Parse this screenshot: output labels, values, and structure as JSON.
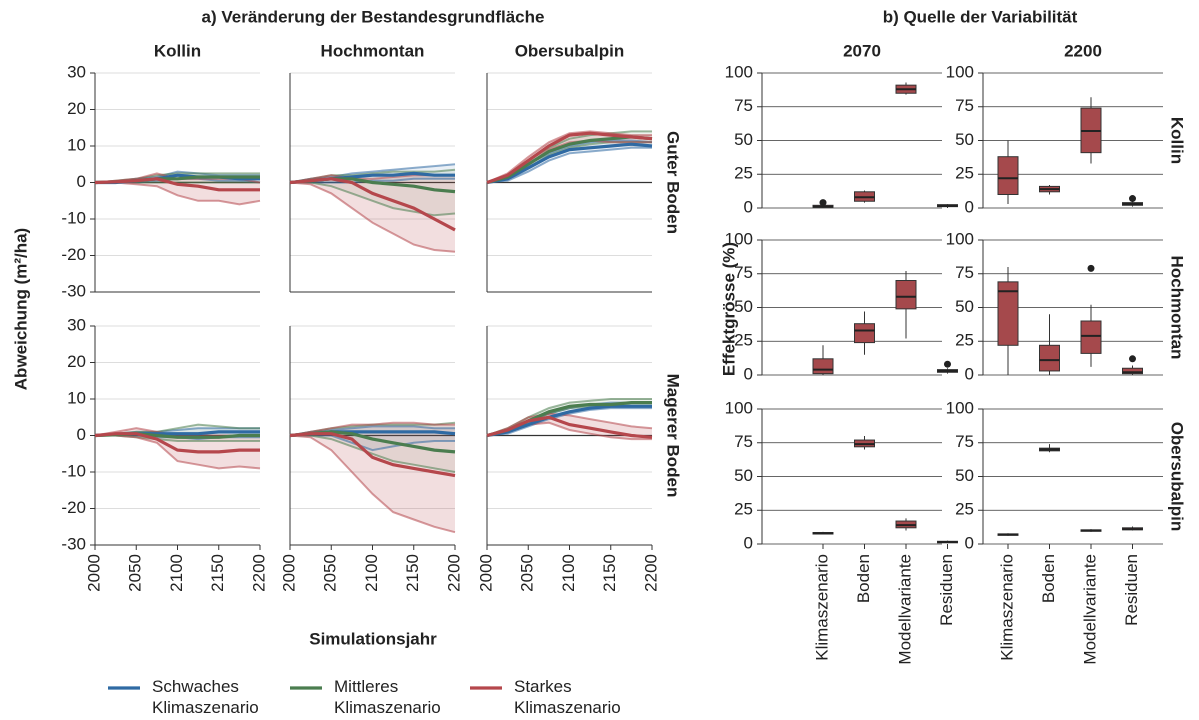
{
  "chart_data": [
    {
      "type": "line",
      "title": "a) Veränderung der Bestandesgrundfläche",
      "col_titles": [
        "Kollin",
        "Hochmontan",
        "Obersubalpin"
      ],
      "row_titles": [
        "Guter Boden",
        "Magerer Boden"
      ],
      "xlabel": "Simulationsjahr",
      "ylabel": "Abweichung (m²/ha)",
      "x": [
        2000,
        2025,
        2050,
        2075,
        2100,
        2125,
        2150,
        2175,
        2200
      ],
      "xlim": [
        2000,
        2200
      ],
      "xticks": [
        2000,
        2050,
        2100,
        2150,
        2200
      ],
      "ylim": [
        -30,
        30
      ],
      "yticks": [
        -30,
        -20,
        -10,
        0,
        10,
        20,
        30
      ],
      "grid": true,
      "series": [
        {
          "name": "Schwaches Klimaszenario",
          "color": "#2f6aa3"
        },
        {
          "name": "Mittleres Klimaszenario",
          "color": "#4b7d4f"
        },
        {
          "name": "Starkes Klimaszenario",
          "color": "#b5474c"
        }
      ],
      "panels": [
        {
          "series": [
            {
              "values": [
                0,
                0,
                0.5,
                1,
                2,
                1.5,
                1.5,
                1,
                1
              ],
              "lower": [
                0,
                0,
                0,
                0.5,
                1,
                1,
                0.5,
                0.5,
                0
              ],
              "upper": [
                0,
                0.3,
                1,
                1.5,
                3,
                2.5,
                2,
                2,
                2
              ]
            },
            {
              "values": [
                0,
                0.2,
                0.5,
                1,
                1,
                1.5,
                1.5,
                1.5,
                1.5
              ],
              "lower": [
                0,
                0,
                0,
                0,
                0,
                0,
                0,
                0,
                0
              ],
              "upper": [
                0,
                0.5,
                1,
                2,
                2.5,
                2.5,
                2.5,
                2.5,
                2.5
              ]
            },
            {
              "values": [
                0,
                0.2,
                0.5,
                1,
                -0.5,
                -1,
                -2,
                -2,
                -2
              ],
              "lower": [
                0,
                0,
                -0.5,
                -1,
                -3.5,
                -5,
                -5,
                -6,
                -5
              ],
              "upper": [
                0,
                0.5,
                1,
                2.5,
                1,
                1,
                1,
                1,
                0
              ]
            }
          ]
        },
        {
          "series": [
            {
              "values": [
                0,
                0.5,
                1,
                1.5,
                2,
                2,
                2.5,
                2,
                2
              ],
              "lower": [
                0,
                0,
                0,
                0,
                0.5,
                0.5,
                1,
                1,
                1
              ],
              "upper": [
                0,
                1,
                1.5,
                2.5,
                3,
                3.5,
                4,
                4.5,
                5
              ]
            },
            {
              "values": [
                0,
                0.5,
                1,
                1,
                0,
                -0.5,
                -1,
                -2,
                -2.5
              ],
              "lower": [
                0,
                0,
                -1,
                -3,
                -5,
                -7,
                -8,
                -9,
                -8.5
              ],
              "upper": [
                0,
                1,
                2,
                2,
                2.5,
                3,
                3,
                3,
                3.5
              ]
            },
            {
              "values": [
                0,
                0.5,
                1,
                0,
                -3,
                -5,
                -7,
                -10,
                -13
              ],
              "lower": [
                0,
                -0.5,
                -3,
                -7,
                -11,
                -14,
                -17,
                -18.5,
                -19
              ],
              "upper": [
                0,
                1,
                2,
                1,
                1,
                1.5,
                2,
                2,
                2
              ]
            }
          ]
        },
        {
          "series": [
            {
              "values": [
                0,
                1,
                4,
                7,
                9,
                9.5,
                10,
                10.5,
                10
              ],
              "lower": [
                0,
                0.5,
                3,
                6,
                8,
                8.5,
                9,
                9.5,
                9.5
              ],
              "upper": [
                0,
                1.5,
                5,
                8,
                10,
                11,
                11.5,
                11.5,
                11
              ]
            },
            {
              "values": [
                0,
                1.5,
                5,
                8.5,
                10.5,
                11.5,
                12,
                12.5,
                12
              ],
              "lower": [
                0,
                1,
                4,
                7.5,
                9.5,
                10.5,
                11,
                11,
                11
              ],
              "upper": [
                0,
                2,
                6,
                9.5,
                12,
                13,
                13.5,
                14,
                14
              ]
            },
            {
              "values": [
                0,
                2,
                6,
                10,
                13,
                13.5,
                13,
                12.5,
                12
              ],
              "lower": [
                0,
                1.5,
                5,
                9,
                11,
                11.5,
                11,
                11,
                11
              ],
              "upper": [
                0,
                2.5,
                7,
                11,
                13.5,
                14,
                13.5,
                13,
                13
              ]
            }
          ]
        },
        {
          "series": [
            {
              "values": [
                0,
                0.3,
                0.5,
                0.5,
                0.5,
                0.5,
                1,
                1,
                1
              ],
              "lower": [
                0,
                0,
                0,
                -0.5,
                -0.5,
                -1,
                -0.5,
                -0.5,
                -0.5
              ],
              "upper": [
                0,
                0.5,
                1,
                1,
                1.5,
                2,
                2,
                2,
                2
              ]
            },
            {
              "values": [
                0,
                0.2,
                0.5,
                0,
                -0.5,
                -0.5,
                -0.5,
                0,
                0
              ],
              "lower": [
                0,
                0,
                -0.5,
                -1,
                -1.5,
                -1.5,
                -1.5,
                -1.5,
                -1.5
              ],
              "upper": [
                0,
                0.5,
                1,
                1,
                2,
                3,
                2.5,
                2,
                2
              ]
            },
            {
              "values": [
                0,
                0.5,
                0.5,
                -1,
                -4,
                -4.5,
                -4.5,
                -4,
                -4
              ],
              "lower": [
                0,
                0,
                -0.5,
                -2,
                -7,
                -8,
                -9,
                -8.5,
                -9
              ],
              "upper": [
                0,
                1,
                2,
                1,
                0,
                0,
                0,
                0,
                0
              ]
            }
          ]
        },
        {
          "series": [
            {
              "values": [
                0,
                0.5,
                1,
                1,
                1,
                1,
                1,
                1,
                0.5
              ],
              "lower": [
                0,
                0,
                0,
                -2,
                -4,
                -3,
                -2,
                -1.5,
                -1.5
              ],
              "upper": [
                0,
                1,
                1.5,
                2,
                2.5,
                2.5,
                2.5,
                2,
                2
              ]
            },
            {
              "values": [
                0,
                0.5,
                1,
                0.5,
                -1,
                -2,
                -3,
                -4,
                -4.5
              ],
              "lower": [
                0,
                0,
                -1,
                -3,
                -5,
                -7,
                -8,
                -9,
                -10
              ],
              "upper": [
                0,
                1,
                2,
                2.5,
                3,
                3,
                3,
                3,
                3.5
              ]
            },
            {
              "values": [
                0,
                0.5,
                0.5,
                -1,
                -6,
                -8,
                -9,
                -10,
                -11
              ],
              "lower": [
                0,
                -0.5,
                -4,
                -10,
                -16,
                -21,
                -23,
                -25,
                -26.5
              ],
              "upper": [
                0,
                1,
                2,
                3,
                3,
                3.5,
                3.5,
                3,
                3
              ]
            }
          ]
        },
        {
          "series": [
            {
              "values": [
                0,
                1,
                3,
                5,
                6.5,
                7.5,
                8,
                8,
                8
              ],
              "lower": [
                0,
                0.5,
                2.5,
                4.5,
                6,
                7,
                7.5,
                7.5,
                7.5
              ],
              "upper": [
                0,
                1.5,
                4,
                6,
                7.5,
                8.5,
                9,
                9,
                9
              ]
            },
            {
              "values": [
                0,
                1.5,
                4,
                6.5,
                8,
                8.5,
                8.5,
                9,
                9
              ],
              "lower": [
                0,
                1,
                3.5,
                6,
                7.5,
                8,
                8,
                8,
                8
              ],
              "upper": [
                0,
                2,
                5,
                7.5,
                9,
                9.5,
                10,
                10,
                10
              ]
            },
            {
              "values": [
                0,
                1.5,
                4,
                5,
                3,
                2,
                1,
                0,
                -0.5
              ],
              "lower": [
                0,
                1,
                3,
                3.5,
                1.5,
                0.5,
                -0.5,
                -1,
                -1
              ],
              "upper": [
                0,
                2,
                5,
                6,
                5.5,
                4.5,
                3.5,
                2.5,
                2
              ]
            }
          ]
        }
      ]
    },
    {
      "type": "box",
      "title": "b) Quelle der Variabilität",
      "col_titles": [
        "2070",
        "2200"
      ],
      "row_titles": [
        "Kollin",
        "Hochmontan",
        "Obersubalpin"
      ],
      "ylabel": "Effektgrösse (%)",
      "categories": [
        "Klimaszenario",
        "Boden",
        "Modellvariante",
        "Residuen"
      ],
      "ylim": [
        0,
        100
      ],
      "yticks": [
        0,
        25,
        50,
        75,
        100
      ],
      "grid": true,
      "color": "#a5494c",
      "panels": [
        {
          "boxes": [
            {
              "whislo": 0,
              "q1": 0.5,
              "med": 1,
              "q3": 2,
              "whishi": 3,
              "fliers": [
                4
              ]
            },
            {
              "whislo": 4,
              "q1": 5,
              "med": 8,
              "q3": 12,
              "whishi": 13
            },
            {
              "whislo": 84,
              "q1": 85,
              "med": 88,
              "q3": 91,
              "whishi": 93
            },
            {
              "whislo": 0,
              "q1": 1,
              "med": 1.5,
              "q3": 2.5,
              "whishi": 3
            }
          ]
        },
        {
          "boxes": [
            {
              "whislo": 3,
              "q1": 10,
              "med": 22,
              "q3": 38,
              "whishi": 50
            },
            {
              "whislo": 10,
              "q1": 12,
              "med": 14,
              "q3": 16,
              "whishi": 17
            },
            {
              "whislo": 33,
              "q1": 41,
              "med": 57,
              "q3": 74,
              "whishi": 82
            },
            {
              "whislo": 1,
              "q1": 2,
              "med": 3,
              "q3": 4,
              "whishi": 5,
              "fliers": [
                7
              ]
            }
          ]
        },
        {
          "boxes": [
            {
              "whislo": 0,
              "q1": 1,
              "med": 4,
              "q3": 12,
              "whishi": 22
            },
            {
              "whislo": 15,
              "q1": 24,
              "med": 33,
              "q3": 38,
              "whishi": 47
            },
            {
              "whislo": 27,
              "q1": 49,
              "med": 58,
              "q3": 70,
              "whishi": 77
            },
            {
              "whislo": 1,
              "q1": 2,
              "med": 3,
              "q3": 4,
              "whishi": 5,
              "fliers": [
                8
              ]
            }
          ]
        },
        {
          "boxes": [
            {
              "whislo": 0,
              "q1": 22,
              "med": 62,
              "q3": 69,
              "whishi": 80
            },
            {
              "whislo": 0,
              "q1": 3,
              "med": 11,
              "q3": 22,
              "whishi": 45
            },
            {
              "whislo": 6,
              "q1": 16,
              "med": 29,
              "q3": 40,
              "whishi": 52,
              "fliers": [
                79
              ]
            },
            {
              "whislo": 0,
              "q1": 1,
              "med": 2,
              "q3": 5,
              "whishi": 7,
              "fliers": [
                12
              ]
            }
          ]
        },
        {
          "boxes": [
            {
              "whislo": 7,
              "q1": 7.5,
              "med": 8,
              "q3": 8.5,
              "whishi": 9
            },
            {
              "whislo": 70,
              "q1": 72,
              "med": 74,
              "q3": 77,
              "whishi": 80
            },
            {
              "whislo": 10,
              "q1": 12,
              "med": 14,
              "q3": 17,
              "whishi": 19
            },
            {
              "whislo": 1,
              "q1": 1,
              "med": 1.5,
              "q3": 2,
              "whishi": 2.5
            }
          ]
        },
        {
          "boxes": [
            {
              "whislo": 6,
              "q1": 6.5,
              "med": 7,
              "q3": 7.5,
              "whishi": 8
            },
            {
              "whislo": 68,
              "q1": 69,
              "med": 70,
              "q3": 71,
              "whishi": 74
            },
            {
              "whislo": 9,
              "q1": 9.5,
              "med": 10,
              "q3": 10.5,
              "whishi": 11
            },
            {
              "whislo": 10,
              "q1": 10.5,
              "med": 11,
              "q3": 12,
              "whishi": 13
            }
          ]
        }
      ]
    }
  ]
}
